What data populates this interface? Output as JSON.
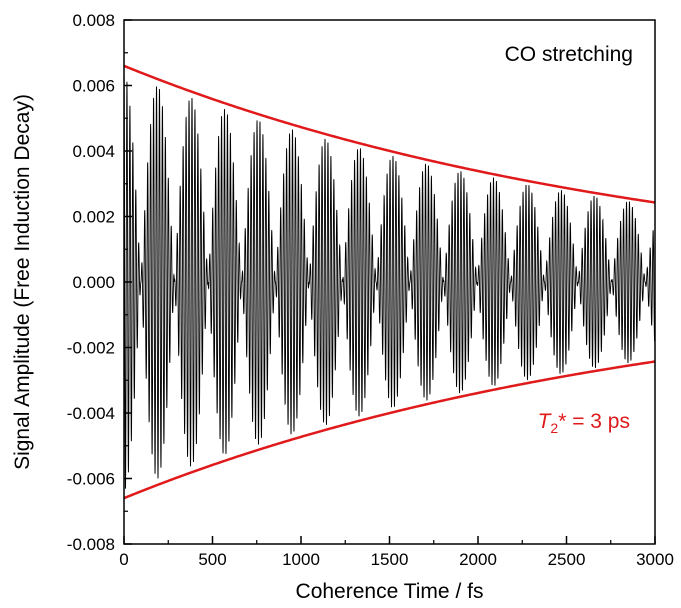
{
  "chart_data": {
    "type": "line",
    "title": "",
    "xlabel": "Coherence Time / fs",
    "ylabel": "Signal Amplitude (Free Induction Decay)",
    "xlim": [
      0,
      3000
    ],
    "ylim": [
      -0.008,
      0.008
    ],
    "x_ticks": [
      0,
      500,
      1000,
      1500,
      2000,
      2500,
      3000
    ],
    "x_tick_labels": [
      "0",
      "500",
      "1000",
      "1500",
      "2000",
      "2500",
      "3000"
    ],
    "y_ticks": [
      -0.008,
      -0.006,
      -0.004,
      -0.002,
      0.0,
      0.002,
      0.004,
      0.006,
      0.008
    ],
    "y_tick_labels": [
      "-0.008",
      "-0.006",
      "-0.004",
      "-0.002",
      "0.000",
      "0.002",
      "0.004",
      "0.006",
      "0.008"
    ],
    "grid": false,
    "legend": "none",
    "series": [
      {
        "color": "#000000",
        "style": "oscillating decaying signal",
        "x": [
          0,
          200,
          380,
          580,
          760,
          950,
          1140,
          1330,
          1520,
          1710,
          1900,
          2090,
          2280,
          2470,
          2660,
          2850,
          3000
        ],
        "y": [
          0.0064,
          0.006,
          0.0057,
          0.0054,
          0.0051,
          0.0048,
          0.0045,
          0.0042,
          0.004,
          0.0037,
          0.0035,
          0.0033,
          0.0031,
          0.0029,
          0.0027,
          0.0025,
          0.0024
        ]
      },
      {
        "color": "#e0191b",
        "style": "upper envelope",
        "x": [
          0,
          500,
          1000,
          1500,
          2000,
          2500,
          3000
        ],
        "y": [
          0.0066,
          0.0056,
          0.0047,
          0.004,
          0.0034,
          0.0028,
          0.0024
        ]
      },
      {
        "color": "#e0191b",
        "style": "lower envelope",
        "x": [
          0,
          500,
          1000,
          1500,
          2000,
          2500,
          3000
        ],
        "y": [
          -0.0066,
          -0.0056,
          -0.0047,
          -0.004,
          -0.0034,
          -0.0028,
          -0.0024
        ]
      }
    ],
    "envelope_amplitude": 0.0066,
    "decay_time_fs": 3000,
    "beat_period_fs": 190,
    "carrier_period_fs": 16.7,
    "annotations": [
      {
        "text": "CO stretching",
        "color": "#000000",
        "position": "top-right"
      },
      {
        "text_t": "T",
        "text_sub": "2",
        "text_rest": "* = 3 ps",
        "color": "#e0191b",
        "position": "lower-right"
      }
    ]
  }
}
